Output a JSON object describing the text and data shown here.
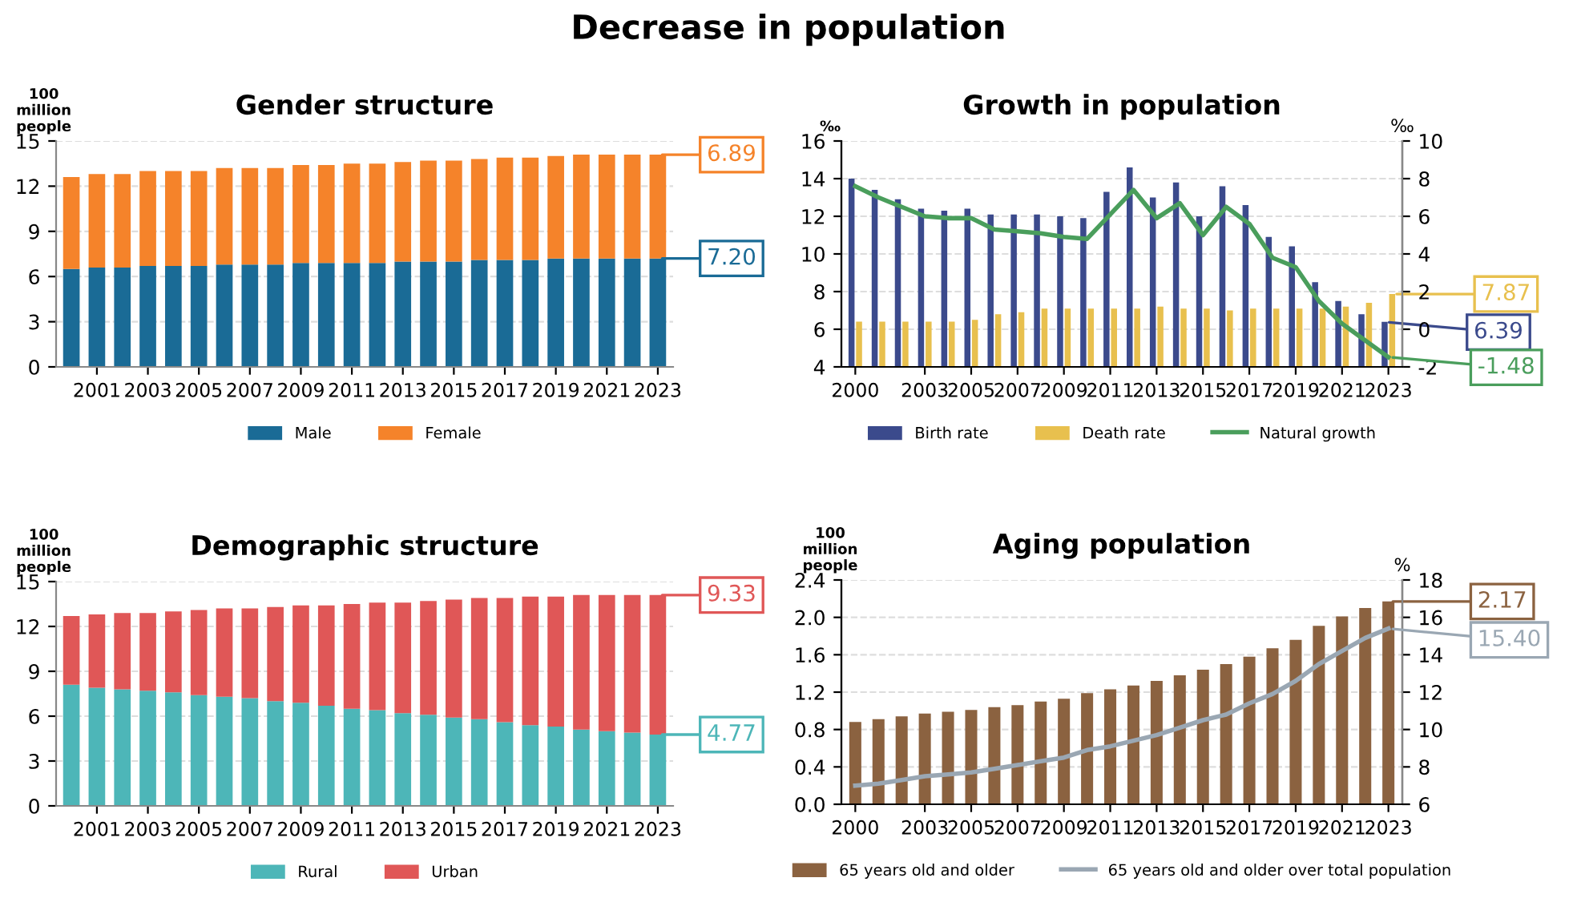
{
  "chart_data": [
    {
      "type": "bar",
      "annotations": [
        "Decrease in population"
      ],
      "title": "Gender structure",
      "ylabel": "100\nmillion\npeople",
      "stacked": true,
      "categories": [
        null,
        "2001",
        null,
        "2003",
        null,
        "2005",
        null,
        "2007",
        null,
        "2009",
        null,
        "2011",
        null,
        "2013",
        null,
        "2015",
        null,
        "2017",
        null,
        "2019",
        null,
        "2021",
        null,
        "2023"
      ],
      "series": [
        {
          "name": "Male",
          "color": "#1a6b96",
          "values": [
            6.5,
            6.6,
            6.6,
            6.7,
            6.7,
            6.7,
            6.8,
            6.8,
            6.8,
            6.9,
            6.9,
            6.9,
            6.9,
            7.0,
            7.0,
            7.0,
            7.1,
            7.1,
            7.1,
            7.2,
            7.2,
            7.2,
            7.2,
            7.2
          ],
          "value_labels": [
            null,
            null,
            null,
            null,
            null,
            null,
            null,
            null,
            null,
            null,
            null,
            null,
            null,
            null,
            null,
            null,
            null,
            null,
            null,
            null,
            null,
            null,
            null,
            "7.20"
          ]
        },
        {
          "name": "Female",
          "color": "#f5832a",
          "values": [
            6.1,
            6.2,
            6.2,
            6.3,
            6.3,
            6.3,
            6.4,
            6.4,
            6.4,
            6.5,
            6.5,
            6.6,
            6.6,
            6.6,
            6.7,
            6.7,
            6.7,
            6.8,
            6.8,
            6.8,
            6.9,
            6.9,
            6.9,
            6.89
          ],
          "value_labels": [
            null,
            null,
            null,
            null,
            null,
            null,
            null,
            null,
            null,
            null,
            null,
            null,
            null,
            null,
            null,
            null,
            null,
            null,
            null,
            null,
            null,
            null,
            null,
            "6.89"
          ]
        }
      ],
      "ylim": [
        0,
        15
      ],
      "yticks": [
        0,
        3,
        6,
        9,
        12,
        15
      ],
      "grid": "y",
      "legend": "bottom"
    },
    {
      "type": "bar",
      "title": "Growth in population",
      "ylabel": "‰",
      "y2label": "‰",
      "categories": [
        "2000",
        null,
        null,
        "2003",
        null,
        "2005",
        null,
        "2007",
        null,
        "2009",
        null,
        "2011",
        null,
        "2013",
        null,
        "2015",
        null,
        "2017",
        null,
        "2019",
        null,
        "2021",
        null,
        "2023"
      ],
      "series": [
        {
          "name": "Birth rate",
          "color": "#3b4a8c",
          "values": [
            14.0,
            13.4,
            12.9,
            12.4,
            12.3,
            12.4,
            12.1,
            12.1,
            12.1,
            12.0,
            11.9,
            13.3,
            14.6,
            13.0,
            13.8,
            12.0,
            13.6,
            12.6,
            10.9,
            10.4,
            8.5,
            7.5,
            6.8,
            6.39
          ],
          "value_labels": [
            null,
            null,
            null,
            null,
            null,
            null,
            null,
            null,
            null,
            null,
            null,
            null,
            null,
            null,
            null,
            null,
            null,
            null,
            null,
            null,
            null,
            null,
            null,
            "6.39"
          ]
        },
        {
          "name": "Death rate",
          "color": "#e8c04e",
          "values": [
            6.4,
            6.4,
            6.4,
            6.4,
            6.4,
            6.5,
            6.8,
            6.9,
            7.1,
            7.1,
            7.1,
            7.1,
            7.1,
            7.2,
            7.1,
            7.1,
            7.0,
            7.1,
            7.1,
            7.1,
            7.1,
            7.2,
            7.4,
            7.87
          ],
          "value_labels": [
            null,
            null,
            null,
            null,
            null,
            null,
            null,
            null,
            null,
            null,
            null,
            null,
            null,
            null,
            null,
            null,
            null,
            null,
            null,
            null,
            null,
            null,
            null,
            "7.87"
          ]
        },
        {
          "name": "Natural growth",
          "type": "line",
          "axis": "y2",
          "color": "#4a9e5c",
          "values": [
            7.6,
            7.0,
            6.5,
            6.0,
            5.9,
            5.9,
            5.3,
            5.2,
            5.1,
            4.9,
            4.8,
            6.1,
            7.4,
            5.9,
            6.7,
            5.0,
            6.5,
            5.6,
            3.8,
            3.3,
            1.5,
            0.3,
            -0.6,
            -1.48
          ],
          "value_labels": [
            null,
            null,
            null,
            null,
            null,
            null,
            null,
            null,
            null,
            null,
            null,
            null,
            null,
            null,
            null,
            null,
            null,
            null,
            null,
            null,
            null,
            null,
            null,
            "-1.48"
          ]
        }
      ],
      "ylim": [
        4,
        16
      ],
      "yticks": [
        4,
        6,
        8,
        10,
        12,
        14,
        16
      ],
      "y2lim": [
        -2,
        10
      ],
      "y2ticks": [
        -2,
        0,
        2,
        4,
        6,
        8,
        10
      ],
      "grid": "y",
      "legend": "bottom"
    },
    {
      "type": "bar",
      "title": "Demographic structure",
      "ylabel": "100\nmillion\npeople",
      "stacked": true,
      "categories": [
        null,
        "2001",
        null,
        "2003",
        null,
        "2005",
        null,
        "2007",
        null,
        "2009",
        null,
        "2011",
        null,
        "2013",
        null,
        "2015",
        null,
        "2017",
        null,
        "2019",
        null,
        "2021",
        null,
        "2023"
      ],
      "series": [
        {
          "name": "Rural",
          "color": "#4db6b8",
          "values": [
            8.1,
            7.9,
            7.8,
            7.7,
            7.6,
            7.4,
            7.3,
            7.2,
            7.0,
            6.9,
            6.7,
            6.5,
            6.4,
            6.2,
            6.1,
            5.9,
            5.8,
            5.6,
            5.4,
            5.3,
            5.1,
            5.0,
            4.9,
            4.77
          ],
          "value_labels": [
            null,
            null,
            null,
            null,
            null,
            null,
            null,
            null,
            null,
            null,
            null,
            null,
            null,
            null,
            null,
            null,
            null,
            null,
            null,
            null,
            null,
            null,
            null,
            "4.77"
          ]
        },
        {
          "name": "Urban",
          "color": "#e05757",
          "values": [
            4.6,
            4.9,
            5.1,
            5.2,
            5.4,
            5.7,
            5.9,
            6.0,
            6.3,
            6.5,
            6.7,
            7.0,
            7.2,
            7.4,
            7.6,
            7.9,
            8.1,
            8.3,
            8.6,
            8.7,
            9.0,
            9.1,
            9.2,
            9.33
          ],
          "value_labels": [
            null,
            null,
            null,
            null,
            null,
            null,
            null,
            null,
            null,
            null,
            null,
            null,
            null,
            null,
            null,
            null,
            null,
            null,
            null,
            null,
            null,
            null,
            null,
            "9.33"
          ]
        }
      ],
      "ylim": [
        0,
        15
      ],
      "yticks": [
        0,
        3,
        6,
        9,
        12,
        15
      ],
      "grid": "y",
      "legend": "bottom"
    },
    {
      "type": "bar",
      "title": "Aging population",
      "ylabel": "100\nmillion\npeople",
      "y2label": "%",
      "categories": [
        "2000",
        null,
        null,
        "2003",
        null,
        "2005",
        null,
        "2007",
        null,
        "2009",
        null,
        "2011",
        null,
        "2013",
        null,
        "2015",
        null,
        "2017",
        null,
        "2019",
        null,
        "2021",
        null,
        "2023"
      ],
      "series": [
        {
          "name": "65 years old and older",
          "color": "#8b6240",
          "values": [
            0.88,
            0.91,
            0.94,
            0.97,
            0.99,
            1.01,
            1.04,
            1.06,
            1.1,
            1.13,
            1.19,
            1.23,
            1.27,
            1.32,
            1.38,
            1.44,
            1.5,
            1.58,
            1.67,
            1.76,
            1.91,
            2.01,
            2.1,
            2.17
          ],
          "value_labels": [
            null,
            null,
            null,
            null,
            null,
            null,
            null,
            null,
            null,
            null,
            null,
            null,
            null,
            null,
            null,
            null,
            null,
            null,
            null,
            null,
            null,
            null,
            null,
            "2.17"
          ]
        },
        {
          "name": "65 years old and older over total population",
          "type": "line",
          "axis": "y2",
          "color": "#9aa7b3",
          "values": [
            7.0,
            7.1,
            7.3,
            7.5,
            7.6,
            7.7,
            7.9,
            8.1,
            8.3,
            8.5,
            8.9,
            9.1,
            9.4,
            9.7,
            10.1,
            10.5,
            10.8,
            11.4,
            11.9,
            12.6,
            13.5,
            14.2,
            14.9,
            15.4
          ],
          "value_labels": [
            null,
            null,
            null,
            null,
            null,
            null,
            null,
            null,
            null,
            null,
            null,
            null,
            null,
            null,
            null,
            null,
            null,
            null,
            null,
            null,
            null,
            null,
            null,
            "15.40"
          ]
        }
      ],
      "ylim": [
        0,
        2.4
      ],
      "yticks": [
        {
          "value": 0,
          "label": "0.0"
        },
        0.4,
        0.8,
        1.2,
        1.6,
        {
          "value": 2,
          "label": "2.0"
        },
        2.4
      ],
      "y2lim": [
        6,
        18
      ],
      "y2ticks": [
        6,
        8,
        10,
        12,
        14,
        16,
        18
      ],
      "grid": "y",
      "legend": "bottom"
    }
  ]
}
